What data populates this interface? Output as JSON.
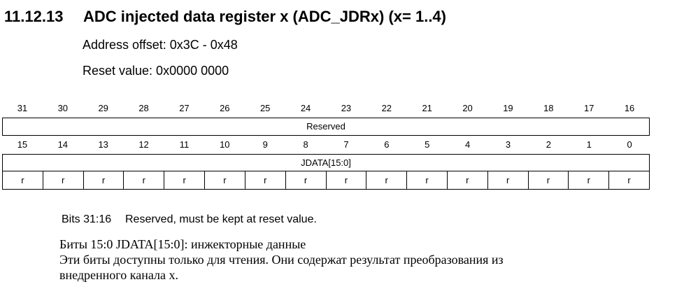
{
  "heading": {
    "number": "11.12.13",
    "text": "ADC injected data register x (ADC_JDRx) (x= 1..4)"
  },
  "address_offset": "Address offset: 0x3C - 0x48",
  "reset_value": "Reset value: 0x0000 0000",
  "register": {
    "upper_bits": [
      "31",
      "30",
      "29",
      "28",
      "27",
      "26",
      "25",
      "24",
      "23",
      "22",
      "21",
      "20",
      "19",
      "18",
      "17",
      "16"
    ],
    "upper_field": "Reserved",
    "lower_bits": [
      "15",
      "14",
      "13",
      "12",
      "11",
      "10",
      "9",
      "8",
      "7",
      "6",
      "5",
      "4",
      "3",
      "2",
      "1",
      "0"
    ],
    "lower_field": "JDATA[15:0]",
    "access": [
      "r",
      "r",
      "r",
      "r",
      "r",
      "r",
      "r",
      "r",
      "r",
      "r",
      "r",
      "r",
      "r",
      "r",
      "r",
      "r"
    ]
  },
  "description": {
    "reserved_bits": "Bits 31:16",
    "reserved_text": "Reserved, must be kept at reset value.",
    "ru_line1": "Биты 15:0 JDATA[15:0]: инжекторные данные",
    "ru_line2": "Эти биты доступны только для чтения. Они содержат результат преобразования из",
    "ru_line3": "внедренного канала x."
  }
}
